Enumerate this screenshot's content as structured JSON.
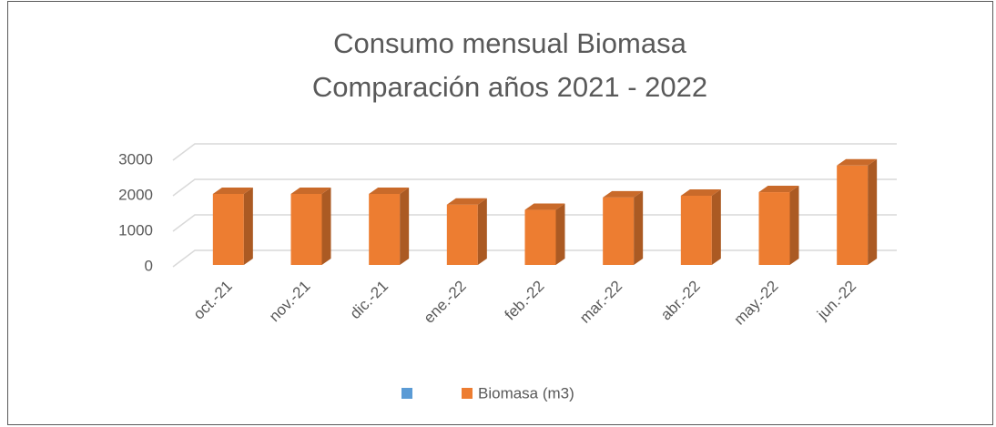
{
  "chart_data": {
    "type": "bar3d",
    "title": [
      "Consumo mensual Biomasa",
      "Comparación años 2021 - 2022"
    ],
    "categories": [
      "oct.-21",
      "nov.-21",
      "dic.-21",
      "ene.-22",
      "feb.-22",
      "mar.-22",
      "abr.-22",
      "may.-22",
      "jun.-22"
    ],
    "series": [
      {
        "name": "Biomasa (m3)",
        "color": "#ed7d31",
        "values": [
          2000,
          2000,
          2000,
          1700,
          1550,
          1900,
          1950,
          2050,
          2800
        ]
      }
    ],
    "ylim": [
      0,
      3000
    ],
    "yticks": [
      0,
      1000,
      2000,
      3000
    ],
    "grid": true,
    "legend": "bottom"
  }
}
